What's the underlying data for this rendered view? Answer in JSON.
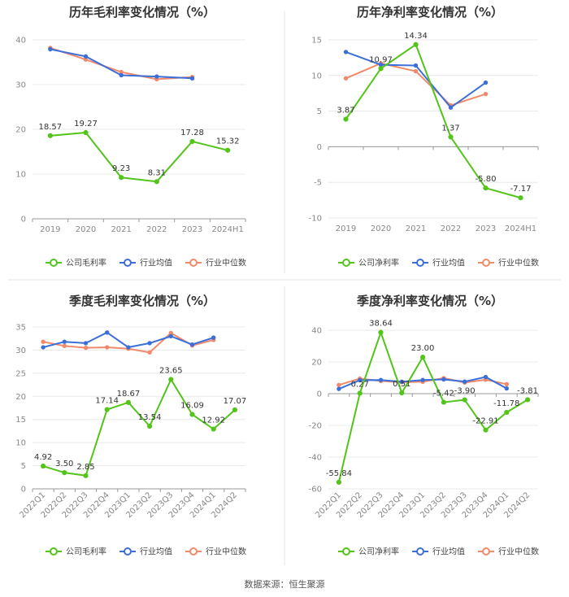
{
  "source": "数据来源：恒生聚源",
  "legend_items": {
    "company_gross": "公司毛利率",
    "company_net": "公司净利率",
    "industry_mean": "行业均值",
    "industry_median": "行业中位数"
  },
  "colors": {
    "company": "#52c41a",
    "industry_mean": "#3b6fd9",
    "industry_median": "#f08a6a",
    "grid": "#e8e8e8",
    "axis": "#999999",
    "divider": "#e6e6e6"
  },
  "chart_data": [
    {
      "id": "annual-gross",
      "type": "line",
      "title": "历年毛利率变化情况（%）",
      "categories": [
        "2019",
        "2020",
        "2021",
        "2022",
        "2023",
        "2024H1"
      ],
      "ylim": [
        0,
        40
      ],
      "yticks": [
        0,
        10,
        20,
        30,
        40
      ],
      "rotate_labels": false,
      "series": [
        {
          "key": "company",
          "name": "公司毛利率",
          "values": [
            18.57,
            19.27,
            9.23,
            8.31,
            17.28,
            15.32
          ],
          "labels": [
            "18.57",
            "19.27",
            "9.23",
            "8.31",
            "17.28",
            "15.32"
          ]
        },
        {
          "key": "industry_mean",
          "name": "行业均值",
          "values": [
            37.9,
            36.3,
            32.1,
            31.8,
            31.4,
            null
          ]
        },
        {
          "key": "industry_median",
          "name": "行业中位数",
          "values": [
            38.2,
            35.6,
            32.8,
            31.2,
            31.7,
            null
          ]
        }
      ]
    },
    {
      "id": "annual-net",
      "type": "line",
      "title": "历年净利率变化情况（%）",
      "categories": [
        "2019",
        "2020",
        "2021",
        "2022",
        "2023",
        "2024H1"
      ],
      "ylim": [
        -10,
        15
      ],
      "yticks": [
        -10,
        -5,
        0,
        5,
        10,
        15
      ],
      "rotate_labels": false,
      "series": [
        {
          "key": "company",
          "name": "公司净利率",
          "values": [
            3.87,
            10.97,
            14.34,
            1.37,
            -5.8,
            -7.17
          ],
          "labels": [
            "3.87",
            "10.97",
            "14.34",
            "1.37",
            "-5.80",
            "-7.17"
          ]
        },
        {
          "key": "industry_mean",
          "name": "行业均值",
          "values": [
            13.3,
            11.5,
            11.4,
            5.5,
            9.0,
            null
          ]
        },
        {
          "key": "industry_median",
          "name": "行业中位数",
          "values": [
            9.6,
            11.7,
            10.6,
            5.8,
            7.4,
            null
          ]
        }
      ]
    },
    {
      "id": "quarterly-gross",
      "type": "line",
      "title": "季度毛利率变化情况（%）",
      "categories": [
        "2022Q1",
        "2022Q2",
        "2022Q3",
        "2022Q4",
        "2023Q1",
        "2023Q2",
        "2023Q3",
        "2023Q4",
        "2024Q1",
        "2024Q2"
      ],
      "ylim": [
        0,
        35
      ],
      "yticks": [
        0,
        5,
        10,
        15,
        20,
        25,
        30,
        35
      ],
      "rotate_labels": true,
      "series": [
        {
          "key": "company",
          "name": "公司毛利率",
          "values": [
            4.92,
            3.5,
            2.85,
            17.14,
            18.67,
            13.54,
            23.65,
            16.09,
            12.92,
            17.07
          ],
          "labels": [
            "4.92",
            "3.50",
            "2.85",
            "17.14",
            "18.67",
            "13.54",
            "23.65",
            "16.09",
            "12.92",
            "17.07"
          ]
        },
        {
          "key": "industry_mean",
          "name": "行业均值",
          "values": [
            30.6,
            31.8,
            31.5,
            33.8,
            30.6,
            31.5,
            33.0,
            31.2,
            32.7,
            null
          ]
        },
        {
          "key": "industry_median",
          "name": "行业中位数",
          "values": [
            31.8,
            30.9,
            30.5,
            30.6,
            30.3,
            29.5,
            33.7,
            31.0,
            32.2,
            null
          ]
        }
      ]
    },
    {
      "id": "quarterly-net",
      "type": "line",
      "title": "季度净利率变化情况（%）",
      "categories": [
        "2022Q1",
        "2022Q2",
        "2022Q3",
        "2022Q4",
        "2023Q1",
        "2023Q2",
        "2023Q3",
        "2023Q4",
        "2024Q1",
        "2024Q2"
      ],
      "ylim": [
        -60,
        40
      ],
      "yticks": [
        -60,
        -40,
        -20,
        0,
        20,
        40
      ],
      "rotate_labels": true,
      "series": [
        {
          "key": "company",
          "name": "公司净利率",
          "values": [
            -55.84,
            0.27,
            38.64,
            0.51,
            23.0,
            -5.42,
            -3.9,
            -22.91,
            -11.78,
            -3.81
          ],
          "labels": [
            "-55.84",
            "0.27",
            "38.64",
            "0.51",
            "23.00",
            "-5.42",
            "-3.90",
            "-22.91",
            "-11.78",
            "-3.81"
          ]
        },
        {
          "key": "industry_mean",
          "name": "行业均值",
          "values": [
            3.0,
            8.5,
            8.6,
            7.5,
            8.6,
            9.0,
            7.6,
            10.5,
            3.3,
            null
          ]
        },
        {
          "key": "industry_median",
          "name": "行业中位数",
          "values": [
            5.5,
            9.5,
            8.0,
            7.2,
            7.5,
            9.8,
            7.0,
            8.8,
            6.0,
            null
          ]
        }
      ]
    }
  ]
}
